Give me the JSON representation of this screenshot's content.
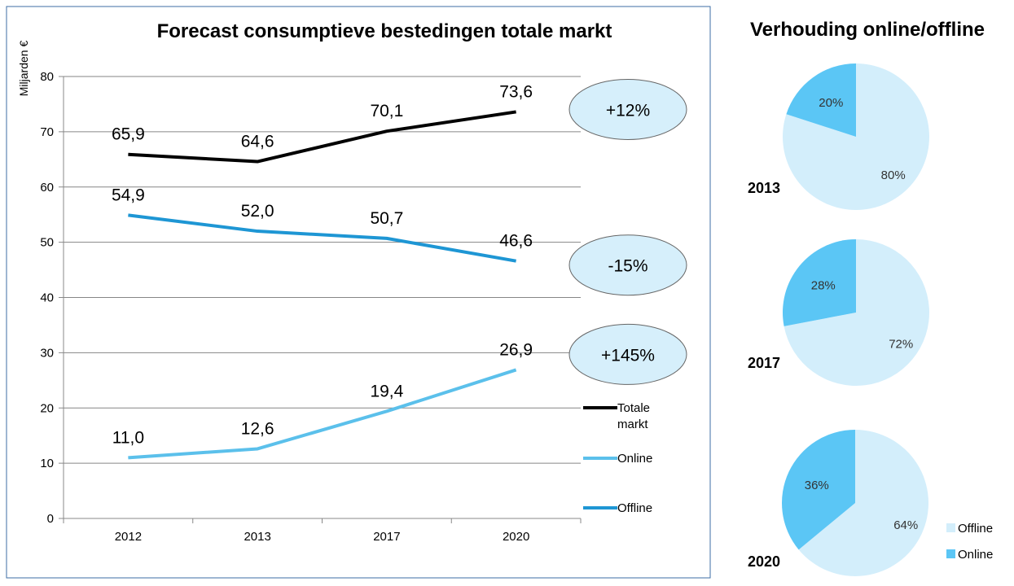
{
  "chart_data": [
    {
      "type": "line",
      "title": "Forecast consumptieve bestedingen totale markt",
      "ylabel": "Miljarden €",
      "xlabel": "",
      "categories": [
        "2012",
        "2013",
        "2017",
        "2020"
      ],
      "ylim": [
        0,
        80
      ],
      "yticks": [
        "0",
        "10",
        "20",
        "30",
        "40",
        "50",
        "60",
        "70",
        "80"
      ],
      "grid": true,
      "legend_position": "right",
      "series": [
        {
          "name": "Totale markt",
          "values": [
            65.9,
            64.6,
            70.1,
            73.6
          ],
          "labels": [
            "65,9",
            "64,6",
            "70,1",
            "73,6"
          ],
          "color": "#000000",
          "change": "+12%"
        },
        {
          "name": "Online",
          "values": [
            11.0,
            12.6,
            19.4,
            26.9
          ],
          "labels": [
            "11,0",
            "12,6",
            "19,4",
            "26,9"
          ],
          "color": "#5bc0eb",
          "change": "+145%"
        },
        {
          "name": "Offline",
          "values": [
            54.9,
            52.0,
            50.7,
            46.6
          ],
          "labels": [
            "54,9",
            "52,0",
            "50,7",
            "46,6"
          ],
          "color": "#1e96d4",
          "change": "-15%"
        }
      ],
      "legend": [
        {
          "key": "total",
          "label_lines": [
            "Totale",
            "markt"
          ],
          "color": "#000000"
        },
        {
          "key": "online",
          "label_lines": [
            "Online"
          ],
          "color": "#5bc0eb"
        },
        {
          "key": "offline",
          "label_lines": [
            "Offline"
          ],
          "color": "#1e96d4"
        }
      ],
      "badge_fill": "#d6effb",
      "badge_stroke": "#666666"
    },
    {
      "type": "pie",
      "title": "Verhouding online/offline",
      "categories": [
        "Offline",
        "Online"
      ],
      "colors": {
        "Offline": "#d3eefb",
        "Online": "#5bc6f5"
      },
      "pies": [
        {
          "year": "2013",
          "values": [
            80,
            20
          ],
          "labels": [
            "80%",
            "20%"
          ]
        },
        {
          "year": "2017",
          "values": [
            72,
            28
          ],
          "labels": [
            "72%",
            "28%"
          ]
        },
        {
          "year": "2020",
          "values": [
            64,
            36
          ],
          "labels": [
            "64%",
            "36%"
          ]
        }
      ],
      "legend": [
        "Offline",
        "Online"
      ]
    }
  ]
}
